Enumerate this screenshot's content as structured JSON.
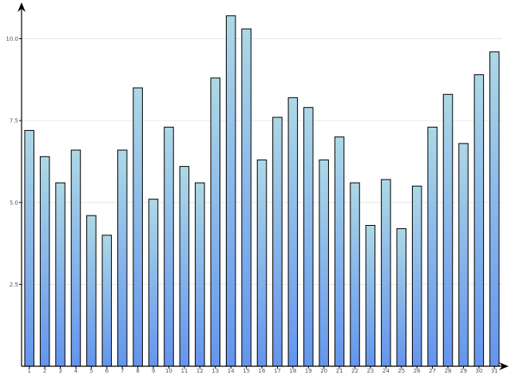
{
  "chart_data": {
    "type": "bar",
    "categories": [
      "1",
      "2",
      "3",
      "4",
      "5",
      "6",
      "7",
      "8",
      "9",
      "10",
      "11",
      "12",
      "13",
      "14",
      "15",
      "16",
      "17",
      "18",
      "19",
      "20",
      "21",
      "22",
      "23",
      "24",
      "25",
      "26",
      "27",
      "28",
      "29",
      "30",
      "31"
    ],
    "values": [
      72,
      64,
      56,
      66,
      46,
      40,
      66,
      85,
      51,
      73,
      61,
      56,
      88,
      107,
      103,
      63,
      76,
      82,
      79,
      63,
      70,
      56,
      43,
      57,
      42,
      55,
      73,
      83,
      68,
      89,
      96
    ],
    "yticks": [
      {
        "value": 25,
        "label": "2.5"
      },
      {
        "value": 50,
        "label": "5.0"
      },
      {
        "value": 75,
        "label": "7.5"
      },
      {
        "value": 100,
        "label": "10.0"
      }
    ],
    "ylim": [
      0,
      110
    ],
    "grid": true,
    "colors": {
      "bar_top": "#add8e6",
      "bar_bottom": "#6495ed",
      "grid": "#e6e6e6",
      "axis": "#000000"
    }
  }
}
